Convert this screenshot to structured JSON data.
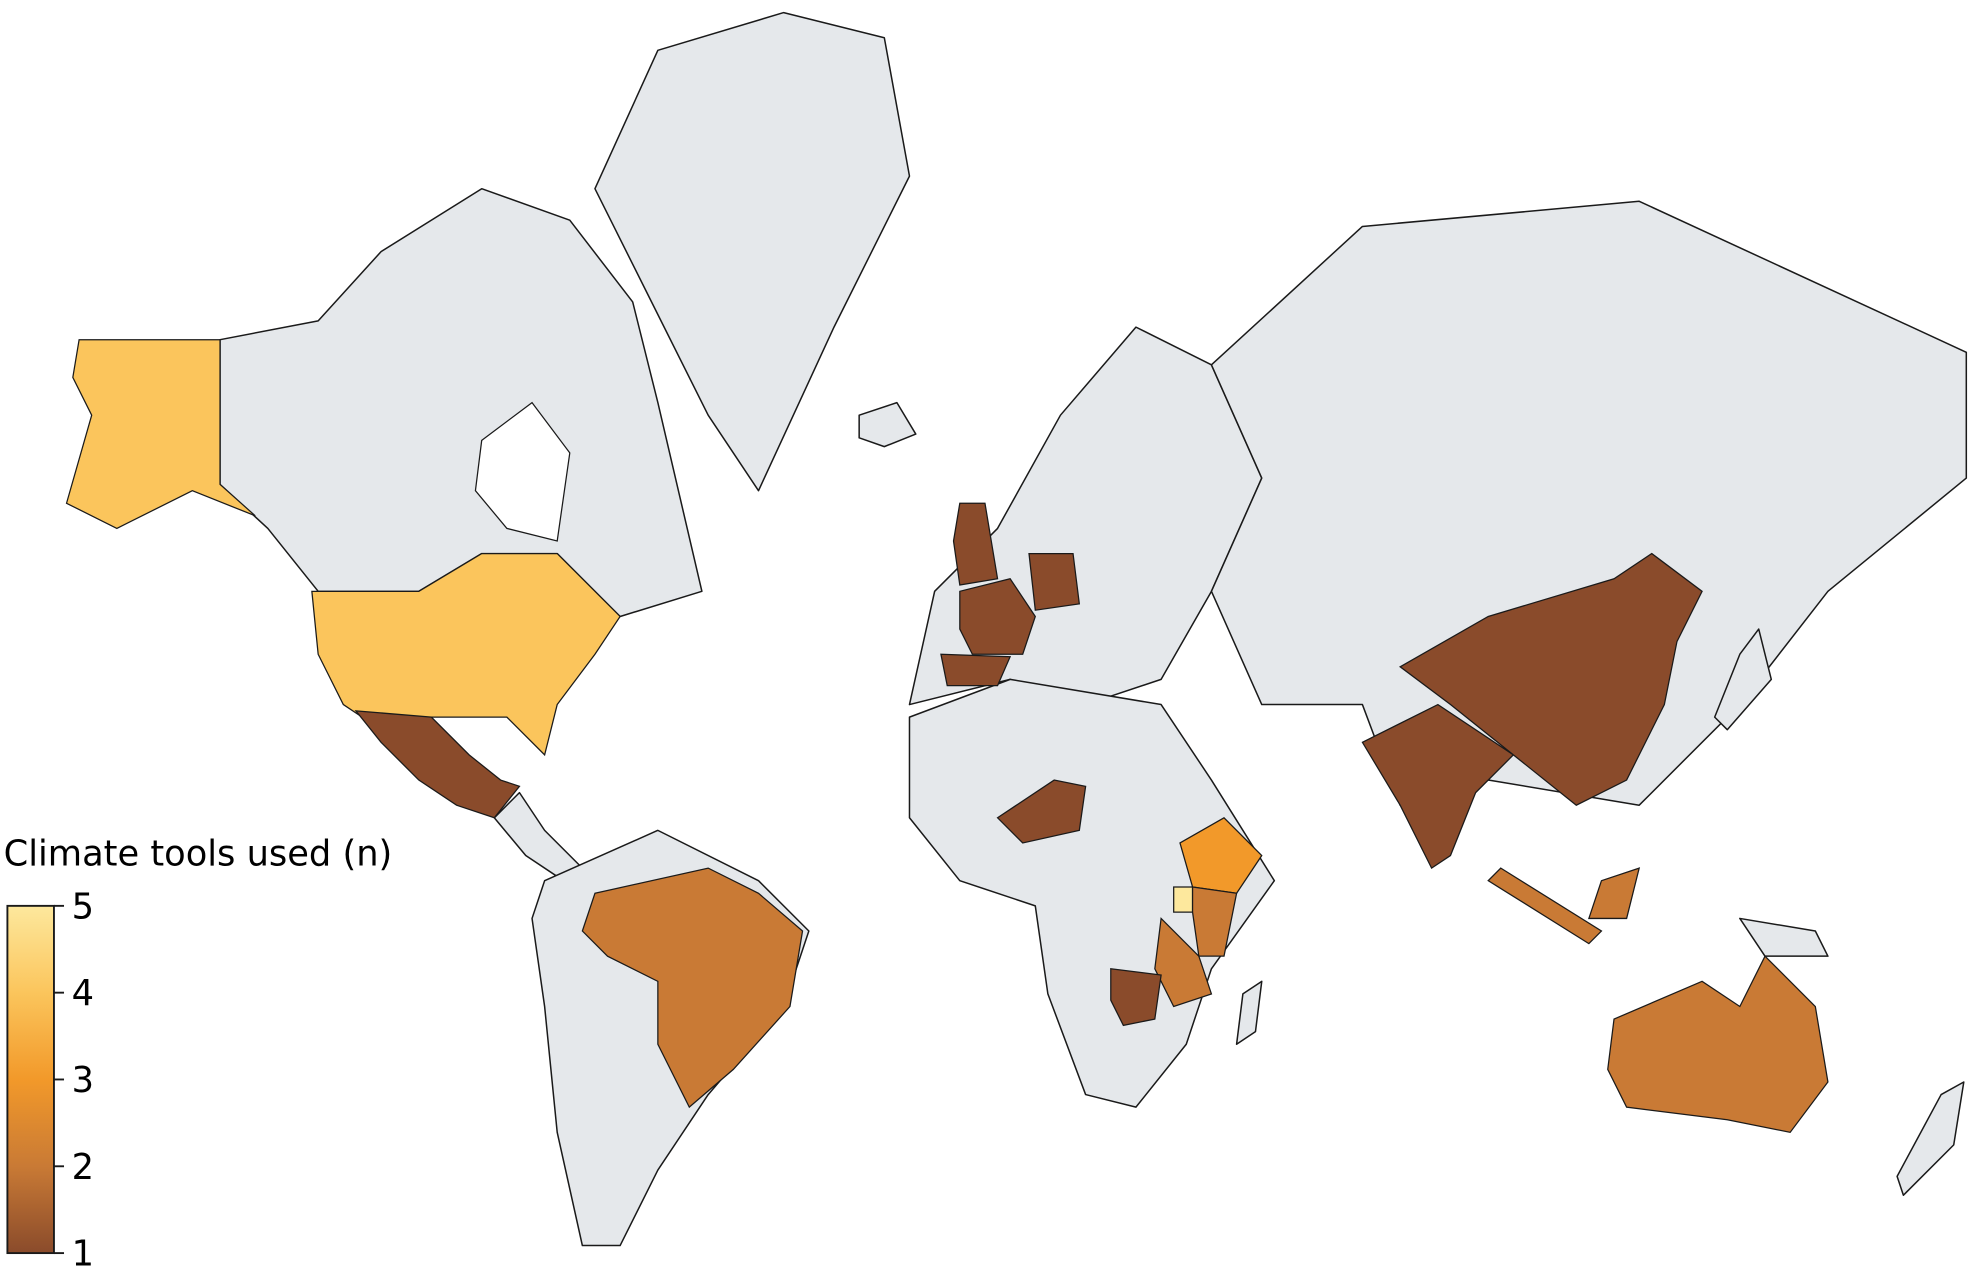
{
  "legend": {
    "title": "Climate tools used (n)",
    "range": [
      1,
      5
    ],
    "ticks": [
      1,
      2,
      3,
      4,
      5
    ],
    "colors": [
      "#8a4b2b",
      "#c97a35",
      "#f2992a",
      "#fbc55c",
      "#fde89d"
    ]
  },
  "regions": {
    "values": [
      4,
      4,
      1,
      2,
      1,
      1,
      1,
      1,
      1,
      3,
      5,
      2,
      2,
      1,
      1,
      1,
      2,
      2,
      2
    ]
  }
}
